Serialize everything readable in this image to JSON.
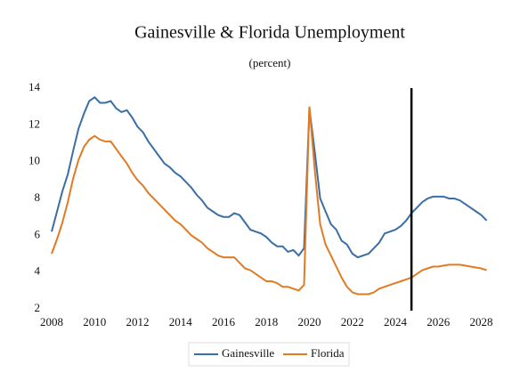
{
  "chart_data": {
    "type": "line",
    "title": "Gainesville & Florida Unemployment",
    "subtitle": "(percent)",
    "x": [
      2008,
      2008.25,
      2008.5,
      2008.75,
      2009,
      2009.25,
      2009.5,
      2009.75,
      2010,
      2010.25,
      2010.5,
      2010.75,
      2011,
      2011.25,
      2011.5,
      2011.75,
      2012,
      2012.25,
      2012.5,
      2012.75,
      2013,
      2013.25,
      2013.5,
      2013.75,
      2014,
      2014.25,
      2014.5,
      2014.75,
      2015,
      2015.25,
      2015.5,
      2015.75,
      2016,
      2016.25,
      2016.5,
      2016.75,
      2017,
      2017.25,
      2017.5,
      2017.75,
      2018,
      2018.25,
      2018.5,
      2018.75,
      2019,
      2019.25,
      2019.5,
      2019.75,
      2020,
      2020.25,
      2020.5,
      2020.75,
      2021,
      2021.25,
      2021.5,
      2021.75,
      2022,
      2022.25,
      2022.5,
      2022.75,
      2023,
      2023.25,
      2023.5,
      2023.75,
      2024,
      2024.25,
      2024.5,
      2024.75,
      2025,
      2025.25,
      2025.5,
      2025.75,
      2026,
      2026.25,
      2026.5,
      2026.75,
      2027,
      2027.25,
      2027.5,
      2027.75,
      2028,
      2028.25
    ],
    "series": [
      {
        "name": "Gainesville",
        "color": "#3a6ea5",
        "values": [
          6.2,
          7.3,
          8.4,
          9.3,
          10.6,
          11.8,
          12.6,
          13.3,
          13.5,
          13.2,
          13.2,
          13.3,
          12.9,
          12.7,
          12.8,
          12.4,
          11.9,
          11.6,
          11.1,
          10.7,
          10.3,
          9.9,
          9.7,
          9.4,
          9.2,
          8.9,
          8.6,
          8.2,
          7.9,
          7.5,
          7.3,
          7.1,
          7.0,
          7.0,
          7.2,
          7.1,
          6.7,
          6.3,
          6.2,
          6.1,
          5.9,
          5.6,
          5.4,
          5.4,
          5.1,
          5.2,
          4.9,
          5.3,
          12.9,
          10.5,
          8.0,
          7.3,
          6.6,
          6.3,
          5.7,
          5.5,
          5.0,
          4.8,
          4.9,
          5.0,
          5.3,
          5.6,
          6.1,
          6.2,
          6.3,
          6.5,
          6.8,
          7.2,
          7.5,
          7.8,
          8.0,
          8.1,
          8.1,
          8.1,
          8.0,
          8.0,
          7.9,
          7.7,
          7.5,
          7.3,
          7.1,
          6.8
        ]
      },
      {
        "name": "Florida",
        "color": "#e07b24",
        "values": [
          5.0,
          5.8,
          6.7,
          7.8,
          9.1,
          10.1,
          10.8,
          11.2,
          11.4,
          11.2,
          11.1,
          11.1,
          10.7,
          10.3,
          9.9,
          9.4,
          9.0,
          8.7,
          8.3,
          8.0,
          7.7,
          7.4,
          7.1,
          6.8,
          6.6,
          6.3,
          6.0,
          5.8,
          5.6,
          5.3,
          5.1,
          4.9,
          4.8,
          4.8,
          4.8,
          4.5,
          4.2,
          4.1,
          3.9,
          3.7,
          3.5,
          3.5,
          3.4,
          3.2,
          3.2,
          3.1,
          3.0,
          3.3,
          13.0,
          9.5,
          6.6,
          5.5,
          4.9,
          4.3,
          3.7,
          3.2,
          2.9,
          2.8,
          2.8,
          2.8,
          2.9,
          3.1,
          3.2,
          3.3,
          3.4,
          3.5,
          3.6,
          3.7,
          3.9,
          4.1,
          4.2,
          4.3,
          4.3,
          4.35,
          4.4,
          4.4,
          4.4,
          4.35,
          4.3,
          4.25,
          4.2,
          4.1
        ]
      }
    ],
    "xlim": [
      2007.75,
      2028.6
    ],
    "xticks": [
      2008,
      2010,
      2012,
      2014,
      2016,
      2018,
      2020,
      2022,
      2024,
      2026,
      2028
    ],
    "ylim": [
      2,
      14
    ],
    "yticks": [
      2,
      4,
      6,
      8,
      10,
      12,
      14
    ],
    "forecast_line_x": 2024.75,
    "legend": "bottom"
  }
}
